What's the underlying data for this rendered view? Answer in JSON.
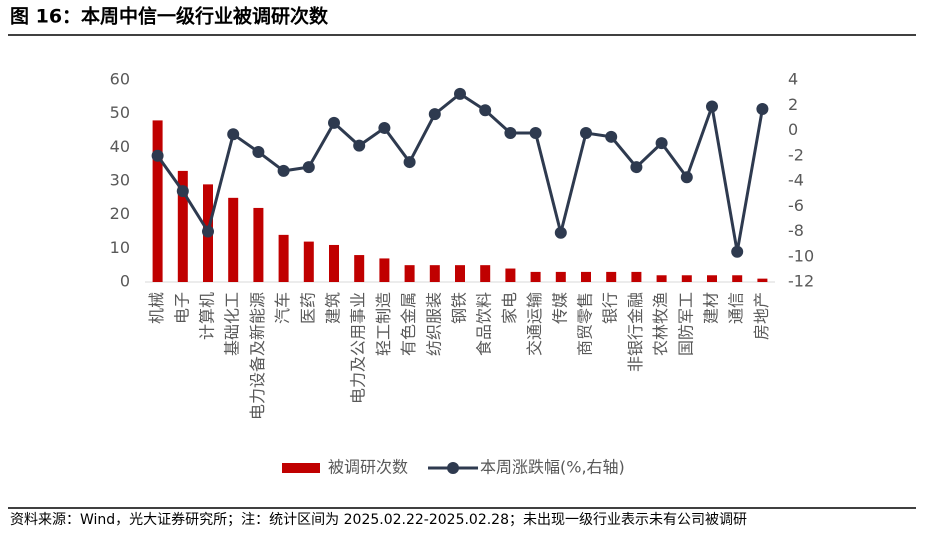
{
  "header": {
    "title": "图 16：本周中信一级行业被调研次数"
  },
  "chart_data": {
    "type": "bar-line",
    "categories": [
      "机械",
      "电子",
      "计算机",
      "基础化工",
      "电力设备及新能源",
      "汽车",
      "医药",
      "建筑",
      "电力及公用事业",
      "轻工制造",
      "有色金属",
      "纺织服装",
      "钢铁",
      "食品饮料",
      "家电",
      "交通运输",
      "传媒",
      "商贸零售",
      "银行",
      "非银行金融",
      "农林牧渔",
      "国防军工",
      "建材",
      "通信",
      "房地产"
    ],
    "series": [
      {
        "name": "被调研次数",
        "type": "bar",
        "color": "#c00000",
        "values": [
          48,
          33,
          29,
          25,
          22,
          14,
          12,
          11,
          8,
          7,
          5,
          5,
          5,
          5,
          4,
          3,
          3,
          3,
          3,
          3,
          2,
          2,
          2,
          2,
          1
        ]
      },
      {
        "name": "本周涨跌幅(%,右轴)",
        "type": "line",
        "axis": "y2",
        "color": "#2e3a4f",
        "values": [
          -2.0,
          -4.8,
          -8.0,
          -0.3,
          -1.7,
          -3.2,
          -2.9,
          0.6,
          -1.2,
          0.2,
          -2.5,
          1.3,
          2.9,
          1.6,
          -0.2,
          -0.2,
          -8.1,
          -0.2,
          -0.5,
          -2.9,
          -1.0,
          -3.7,
          1.9,
          -9.6,
          1.7
        ]
      }
    ],
    "ylim": [
      0,
      60
    ],
    "yticks": [
      0,
      10,
      20,
      30,
      40,
      50,
      60
    ],
    "y2lim": [
      -12,
      4
    ],
    "y2ticks": [
      -12,
      -10,
      -8,
      -6,
      -4,
      -2,
      0,
      2,
      4
    ],
    "legend": "bottom"
  },
  "footer": {
    "source": "资料来源：Wind，光大证券研究所；注：统计区间为 2025.02.22-2025.02.28；未出现一级行业表示未有公司被调研"
  }
}
